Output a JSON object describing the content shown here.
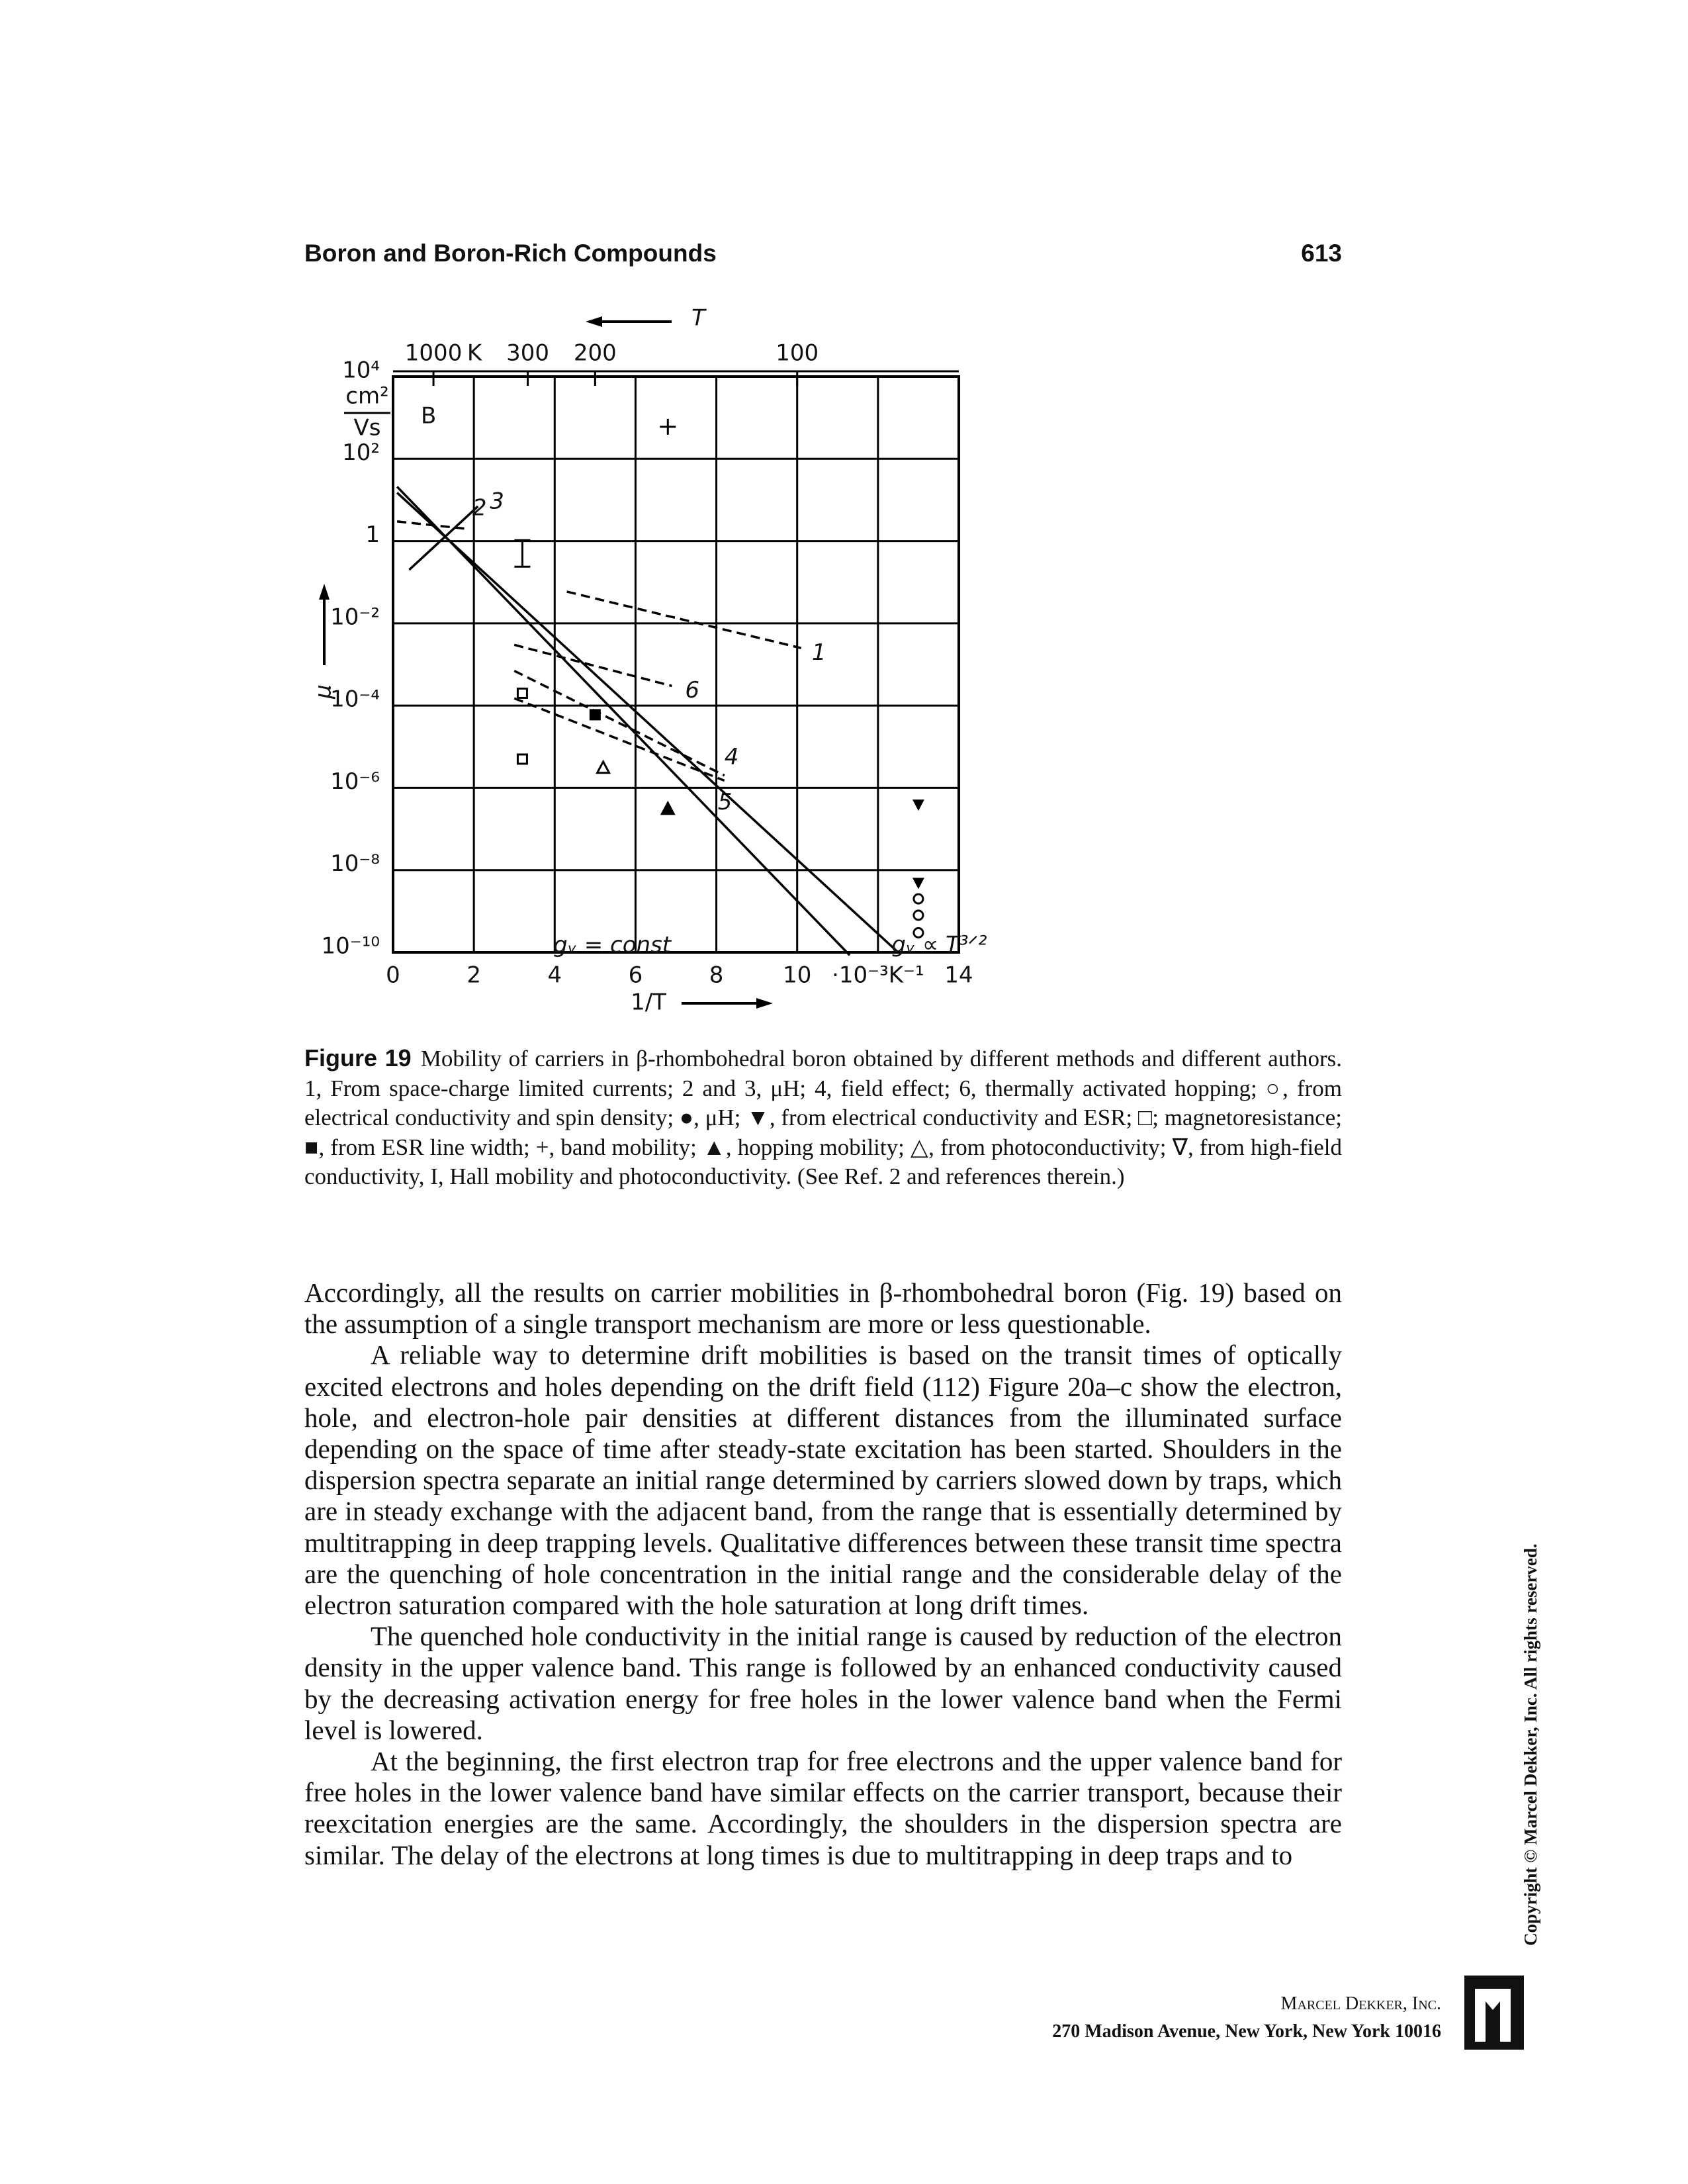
{
  "header": {
    "title": "Boron and Boron-Rich Compounds",
    "page_number": "613"
  },
  "figure": {
    "chart_data": {
      "type": "line",
      "panel_label": "B",
      "xlabel": "1/T",
      "ylabel": "μ",
      "y_unit": [
        "cm²",
        "Vs"
      ],
      "log_y": true,
      "grid": true,
      "color": "#000000",
      "xlim": [
        0,
        14
      ],
      "ylim": [
        1e-10,
        10000
      ],
      "xticks": [
        0,
        2,
        4,
        6,
        8,
        10,
        {
          "value": 12,
          "label": "·10⁻³K⁻¹"
        },
        14
      ],
      "yticks": [
        {
          "value": 10000,
          "label": "10⁴"
        },
        {
          "value": 100,
          "label": "10²"
        },
        1,
        {
          "value": 0.01,
          "label": "10⁻²"
        },
        {
          "value": 0.0001,
          "label": "10⁻⁴"
        },
        {
          "value": 1e-06,
          "label": "10⁻⁶"
        },
        {
          "value": 1e-08,
          "label": "10⁻⁸"
        },
        {
          "value": 1e-10,
          "label": "10⁻¹⁰"
        }
      ],
      "top_axis": {
        "label": "T",
        "unit": "K",
        "ticks": [
          1000,
          300,
          200,
          100
        ]
      },
      "series": [
        {
          "name": "1",
          "dashed": true,
          "x": [
            4.3,
            10.1
          ],
          "values": [
            0.059,
            0.0025
          ]
        },
        {
          "name": "2",
          "dashed": true,
          "x": [
            0.1,
            1.8
          ],
          "values": [
            3,
            2
          ]
        },
        {
          "name": "3",
          "dashed": false,
          "x": [
            0.4,
            2.1
          ],
          "values": [
            0.2,
            7
          ]
        },
        {
          "name": "4",
          "dashed": true,
          "x": [
            3,
            8.2
          ],
          "values": [
            0.0007,
            2e-06
          ]
        },
        {
          "name": "5",
          "dashed": true,
          "x": [
            3,
            8.2
          ],
          "values": [
            0.00015,
            1.5e-06
          ]
        },
        {
          "name": "6",
          "dashed": true,
          "x": [
            3,
            6.9
          ],
          "values": [
            0.003,
            0.0003
          ]
        },
        {
          "name": "gᵥ ∝ T³ᐟ²",
          "dashed": false,
          "x": [
            0.1,
            12.5
          ],
          "values": [
            15,
            1e-10
          ]
        },
        {
          "name": "gᵥ = const",
          "dashed": false,
          "x": [
            0.1,
            11.3
          ],
          "values": [
            21,
            8.5e-11
          ]
        }
      ],
      "points": [
        {
          "marker": "plus",
          "x": [
            6.8
          ],
          "values": [
            600
          ]
        },
        {
          "marker": "triangle",
          "x": [
            6.8
          ],
          "values": [
            3e-07
          ]
        },
        {
          "marker": "triangle-open",
          "x": [
            5.2
          ],
          "values": [
            3e-06
          ]
        },
        {
          "marker": "square",
          "x": [
            5
          ],
          "values": [
            6e-05
          ]
        },
        {
          "marker": "triangle-down",
          "x": [
            13,
            13
          ],
          "values": [
            4e-07,
            5e-09
          ]
        },
        {
          "marker": "circle-open",
          "x": [
            13,
            13,
            13
          ],
          "values": [
            2e-09,
            8e-10,
            3e-10
          ]
        },
        {
          "marker": "square-open",
          "x": [
            3.2,
            3.2
          ],
          "values": [
            0.0002,
            5e-06
          ]
        },
        {
          "marker": "bar-i",
          "x": [
            3.2
          ],
          "values": [
            0.5
          ]
        }
      ]
    },
    "caption": {
      "label": "Figure 19",
      "text": "Mobility of carriers in β-rhombohedral boron obtained by different methods and different authors. 1, From space-charge limited currents; 2 and 3, μH; 4, field effect; 6, thermally activated hopping; ○, from electrical conductivity and spin density; ●, μH; ▼, from electrical conductivity and ESR; □; magnetoresistance; ■, from ESR line width; +, band mobility; ▲, hopping mobility; △, from photoconductivity; ∇, from high-field conductivity, I, Hall mobility and photoconductivity. (See Ref. 2 and references therein.)"
    }
  },
  "body": {
    "paragraphs": [
      "Accordingly, all the results on carrier mobilities in β-rhombohedral boron (Fig. 19) based on the assumption of a single transport mechanism are more or less questionable.",
      "A reliable way to determine drift mobilities is based on the transit times of optically excited electrons and holes depending on the drift field (112) Figure 20a–c show the electron, hole, and electron-hole pair densities at different distances from the illuminated surface depending on the space of time after steady-state excitation has been started. Shoulders in the dispersion spectra separate an initial range determined by carriers slowed down by traps, which are in steady exchange with the adjacent band, from the range that is essentially determined by multitrapping in deep trapping levels. Qualitative differences between these transit time spectra are the quenching of hole concentration in the initial range and the considerable delay of the electron saturation compared with the hole saturation at long drift times.",
      "The quenched hole conductivity in the initial range is caused by reduction of the electron density in the upper valence band. This range is followed by an enhanced conductivity caused by the decreasing activation energy for free holes in the lower valence band when the Fermi level is lowered.",
      "At the beginning, the first electron trap for free electrons and the upper valence band for free holes in the lower valence band have similar effects on the carrier transport, because their reexcitation energies are the same. Accordingly, the shoulders in the dispersion spectra are similar. The delay of the electrons at long times is due to multitrapping in deep traps and to"
    ]
  },
  "copyright": "Copyright © Marcel Dekker, Inc. All rights reserved.",
  "footer": {
    "publisher": "Marcel Dekker, Inc.",
    "address": "270 Madison Avenue, New York, New York 10016"
  }
}
